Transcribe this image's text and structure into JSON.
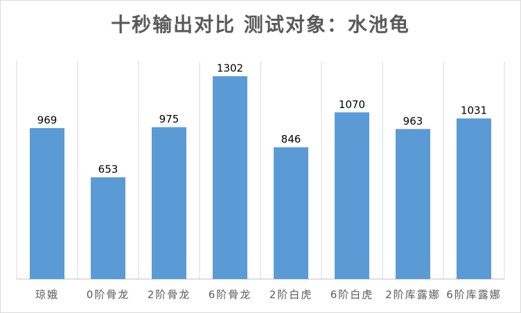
{
  "chart_data": {
    "type": "bar",
    "title": "十秒输出对比 测试对象：水池龟",
    "categories": [
      "琼娥",
      "0阶骨龙",
      "2阶骨龙",
      "6阶骨龙",
      "2阶白虎",
      "6阶白虎",
      "2阶库露娜",
      "6阶库露娜"
    ],
    "values": [
      969,
      653,
      975,
      1302,
      846,
      1070,
      963,
      1031
    ],
    "color": "#5b9bd5",
    "ylim": [
      0,
      1400
    ]
  }
}
